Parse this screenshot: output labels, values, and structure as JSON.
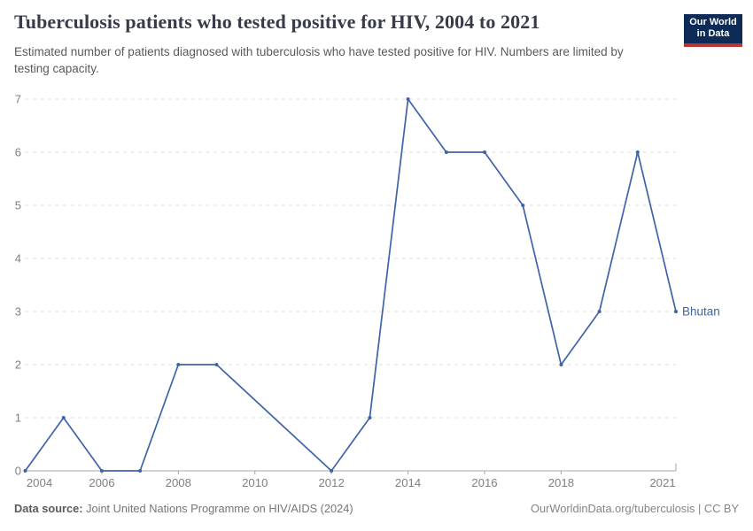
{
  "header": {
    "title": "Tuberculosis patients who tested positive for HIV, 2004 to 2021",
    "subtitle": "Estimated number of patients diagnosed with tuberculosis who have tested positive for HIV. Numbers are limited by testing capacity.",
    "logo": {
      "line1": "Our World",
      "line2": "in Data",
      "bg_color": "#0e2a56",
      "accent_color": "#be342e"
    }
  },
  "chart_data": {
    "type": "line",
    "title": "Tuberculosis patients who tested positive for HIV, 2004 to 2021",
    "xlabel": "",
    "ylabel": "",
    "x_range": [
      2004,
      2021
    ],
    "y_range": [
      0,
      7
    ],
    "y_ticks": [
      0,
      1,
      2,
      3,
      4,
      5,
      6,
      7
    ],
    "x_tick_labels": [
      2004,
      2006,
      2008,
      2010,
      2012,
      2014,
      2016,
      2018,
      2021
    ],
    "grid": "dashed-horizontal",
    "legend_position": "label-at-line-end",
    "series": [
      {
        "name": "Bhutan",
        "color": "#3f63a8",
        "points": [
          [
            2004,
            0
          ],
          [
            2005,
            1
          ],
          [
            2006,
            0
          ],
          [
            2007,
            0
          ],
          [
            2008,
            2
          ],
          [
            2009,
            2
          ],
          [
            2012,
            0
          ],
          [
            2013,
            1
          ],
          [
            2014,
            7
          ],
          [
            2015,
            6
          ],
          [
            2016,
            6
          ],
          [
            2017,
            5
          ],
          [
            2018,
            2
          ],
          [
            2019,
            3
          ],
          [
            2020,
            6
          ],
          [
            2021,
            3
          ]
        ]
      }
    ]
  },
  "footer": {
    "source_label": "Data source:",
    "source_text": " Joint United Nations Programme on HIV/AIDS (2024)",
    "link_text": "OurWorldinData.org/tuberculosis | CC BY"
  },
  "colors": {
    "line": "#3f63a8",
    "grid": "#dedede",
    "axis": "#a5a5a5",
    "tick_label": "#808080",
    "title": "#373c48",
    "subtitle": "#5a5a5a"
  }
}
